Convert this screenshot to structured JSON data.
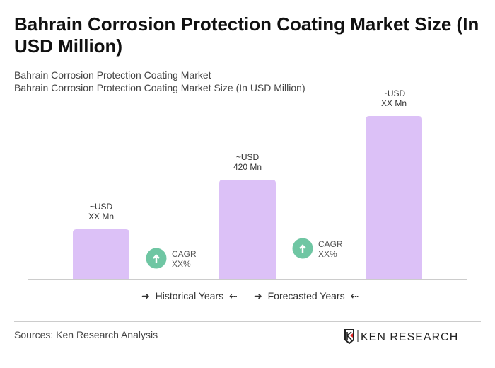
{
  "title": "Bahrain Corrosion Protection Coating Market Size (In USD Million)",
  "subtitle1": "Bahrain Corrosion Protection Coating Market",
  "subtitle2": "Bahrain Corrosion Protection Coating Market Size (In USD Million)",
  "chart_data": {
    "type": "bar",
    "categories": [
      "",
      "",
      ""
    ],
    "values": [
      210,
      420,
      690
    ],
    "data_labels": [
      [
        "~USD",
        "XX Mn"
      ],
      [
        "~USD",
        "420 Mn"
      ],
      [
        "~USD",
        "XX Mn"
      ]
    ],
    "bar_color": "#dcc1f7",
    "cagr": [
      {
        "label": "CAGR",
        "value": "XX%"
      },
      {
        "label": "CAGR",
        "value": "XX%"
      }
    ],
    "cagr_color": "#6fc6a3",
    "grid": false
  },
  "legend": {
    "historical": "Historical Years",
    "forecasted": "Forecasted Years"
  },
  "sources": "Sources: Ken Research Analysis",
  "logo_text": "KEN RESEARCH"
}
